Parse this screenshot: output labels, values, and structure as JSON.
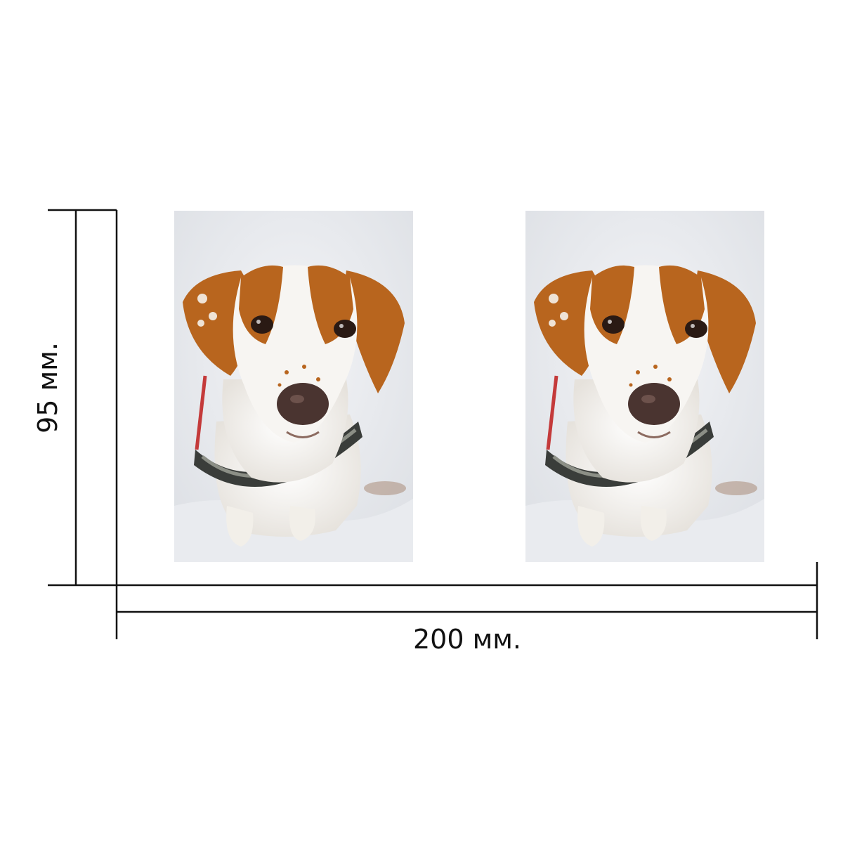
{
  "dimensions": {
    "width_label": "200 мм.",
    "height_label": "95 мм."
  },
  "photos": [
    {
      "subject": "dog-in-snow"
    },
    {
      "subject": "dog-in-snow"
    }
  ],
  "colors": {
    "line": "#111111",
    "snow": "#eef0f3",
    "fur_brown": "#b8651e",
    "fur_white": "#f7f5f2",
    "nose": "#4a3430",
    "collar": "#3a3d3a"
  }
}
